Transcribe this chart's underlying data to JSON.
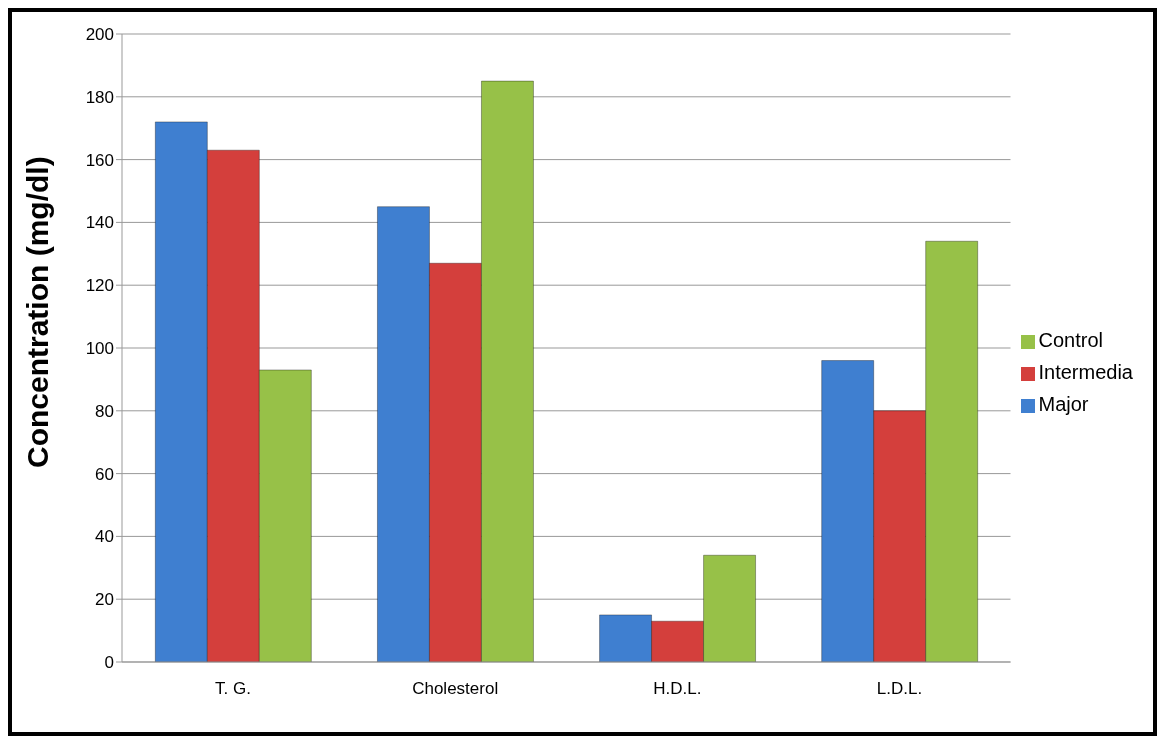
{
  "chart_data": {
    "type": "bar",
    "ylabel": "Concentration (mg/dl)",
    "categories": [
      "T. G.",
      "Cholesterol",
      "H.D.L.",
      "L.D.L."
    ],
    "series": [
      {
        "name": "Major",
        "color": "#3f7fd0",
        "values": [
          172,
          145,
          15,
          96
        ]
      },
      {
        "name": "Intermedia",
        "color": "#d43f3c",
        "values": [
          163,
          127,
          13,
          80
        ]
      },
      {
        "name": "Control",
        "color": "#97c148",
        "values": [
          93,
          185,
          34,
          134
        ]
      }
    ],
    "ylim": [
      0,
      200
    ],
    "yticks": [
      0,
      20,
      40,
      60,
      80,
      100,
      120,
      140,
      160,
      180,
      200
    ],
    "grid": "y",
    "legend": "right"
  }
}
